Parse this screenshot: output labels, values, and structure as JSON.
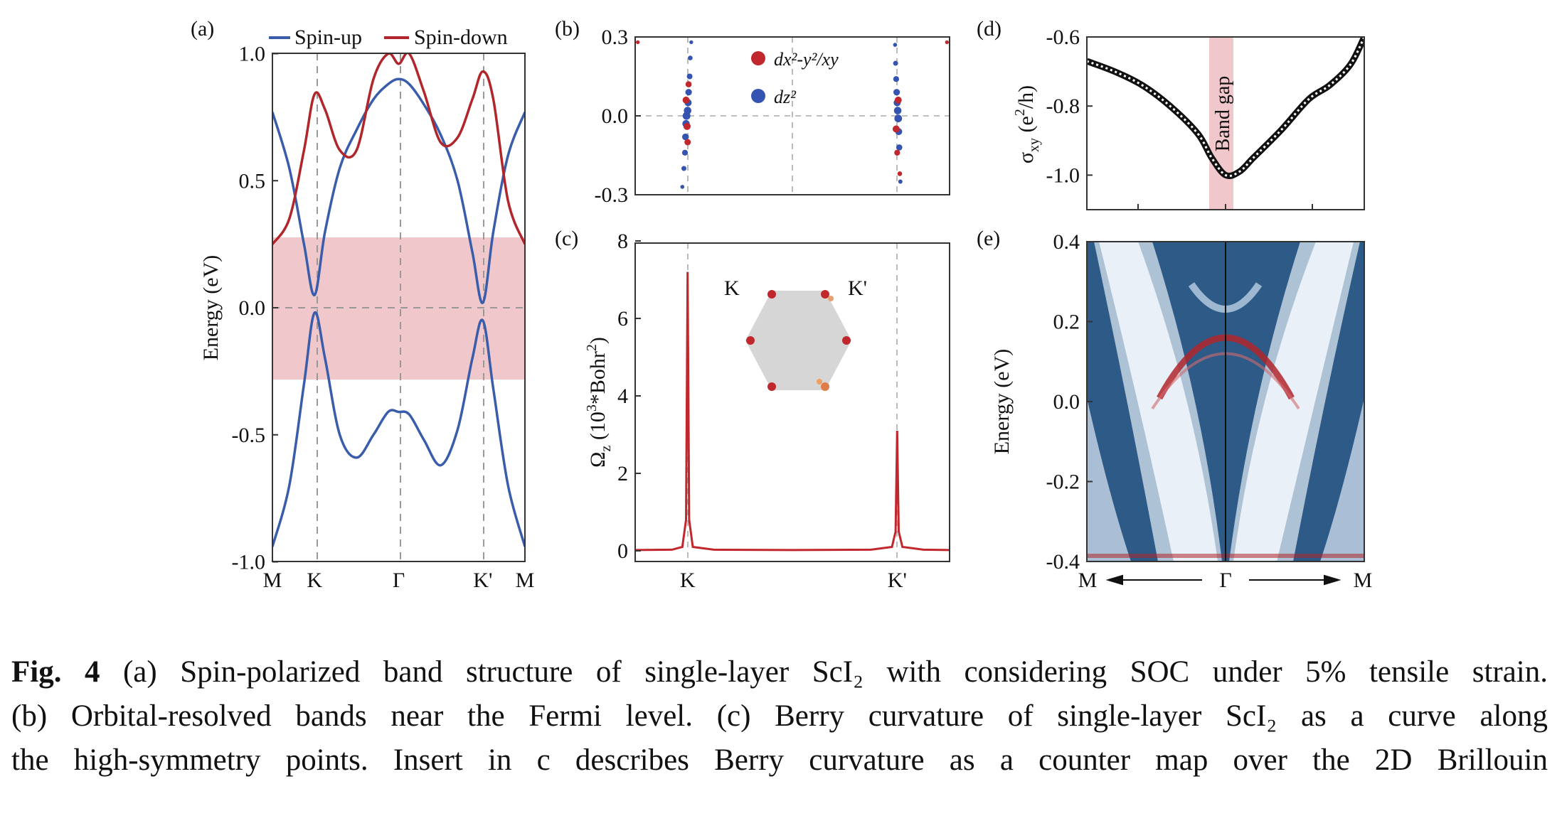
{
  "chart_data": [
    {
      "panel": "(a)",
      "type": "line",
      "legend": [
        "Spin-up",
        "Spin-down"
      ],
      "legend_position": "top",
      "ylabel": "Energy (eV)",
      "ylim": [
        -1.0,
        1.0
      ],
      "yticks": [
        "1.0",
        "0.5",
        "0.0",
        "-0.5",
        "-1.0"
      ],
      "xticks": [
        "M",
        "K",
        "Γ",
        "K'",
        "M"
      ],
      "shaded_band": [
        -0.28,
        0.28
      ],
      "colors": {
        "spin_up": "#3a5dab",
        "spin_down": "#b0262b",
        "band_shade": "#f0c8cc"
      },
      "series": [
        {
          "name": "Spin-up",
          "x": [
            0,
            0.4,
            0.75,
            1.0,
            1.25,
            1.6,
            2.0,
            2.4,
            2.75,
            3.0,
            3.25,
            3.6,
            4.0,
            4.4,
            4.75,
            5.0,
            5.25,
            5.6,
            6.0
          ],
          "y": [
            0.77,
            0.55,
            0.25,
            0.05,
            0.3,
            0.55,
            0.7,
            0.82,
            0.88,
            0.9,
            0.88,
            0.8,
            0.68,
            0.5,
            0.22,
            0.02,
            0.3,
            0.6,
            0.77
          ]
        },
        {
          "name": "Spin-up",
          "x": [
            0,
            0.4,
            0.75,
            1.0,
            1.25,
            1.6,
            2.0,
            2.4,
            2.75,
            3.0,
            3.25,
            3.6,
            4.0,
            4.4,
            4.75,
            5.0,
            5.25,
            5.6,
            6.0
          ],
          "y": [
            -0.94,
            -0.7,
            -0.3,
            -0.02,
            -0.2,
            -0.5,
            -0.59,
            -0.5,
            -0.41,
            -0.41,
            -0.42,
            -0.52,
            -0.62,
            -0.48,
            -0.2,
            -0.05,
            -0.32,
            -0.7,
            -0.94
          ]
        },
        {
          "name": "Spin-down",
          "x": [
            0,
            0.4,
            0.75,
            1.0,
            1.25,
            1.6,
            2.0,
            2.4,
            2.75,
            3.0,
            3.25,
            3.6,
            4.0,
            4.4,
            4.75,
            5.0,
            5.25,
            5.6,
            6.0
          ],
          "y": [
            0.25,
            0.35,
            0.62,
            0.84,
            0.78,
            0.62,
            0.62,
            0.9,
            1.0,
            0.96,
            1.0,
            0.85,
            0.65,
            0.67,
            0.82,
            0.93,
            0.82,
            0.42,
            0.25
          ]
        }
      ]
    },
    {
      "panel": "(b)",
      "type": "scatter",
      "ylim": [
        -0.3,
        0.3
      ],
      "yticks": [
        "0.3",
        "0.0",
        "-0.3"
      ],
      "legend": [
        "dx²-y²/xy",
        "dz²"
      ],
      "legend_position": "top-center",
      "colors": {
        "dxy": "#c0282d",
        "dz2": "#3553b0"
      },
      "series": [
        {
          "name": "dz²",
          "x": [
            0.9,
            0.93,
            0.95,
            0.96,
            0.97,
            0.98,
            1.0,
            1.01,
            1.02,
            1.04,
            1.05,
            1.07,
            4.96,
            4.97,
            4.98,
            4.99,
            5.0,
            5.01,
            5.02,
            5.03,
            5.04,
            5.06
          ],
          "y": [
            -0.27,
            -0.2,
            -0.14,
            -0.08,
            -0.03,
            0.0,
            0.02,
            0.05,
            0.09,
            0.15,
            0.22,
            0.28,
            0.27,
            0.2,
            0.14,
            0.09,
            0.05,
            0.02,
            -0.01,
            -0.06,
            -0.12,
            -0.25
          ]
        },
        {
          "name": "dx²-y²/xy",
          "x": [
            0.97,
            0.99,
            1.0,
            1.02,
            4.98,
            5.0,
            5.02,
            5.05,
            0.05,
            5.95
          ],
          "y": [
            0.06,
            -0.04,
            -0.1,
            0.12,
            -0.05,
            -0.14,
            0.06,
            -0.22,
            0.28,
            0.28
          ]
        }
      ]
    },
    {
      "panel": "(c)",
      "type": "line",
      "ylabel": "Ωz (10³*Bohr²)",
      "ylim": [
        0,
        8
      ],
      "yticks": [
        "8",
        "6",
        "4",
        "2",
        "0"
      ],
      "xticks": [
        "K",
        "K'"
      ],
      "color": "#c0282d",
      "series": [
        {
          "name": "",
          "x": [
            0,
            0.7,
            0.9,
            0.97,
            1.0,
            1.03,
            1.1,
            1.5,
            3.0,
            4.5,
            4.9,
            4.97,
            5.0,
            5.03,
            5.1,
            5.5,
            6.0
          ],
          "y": [
            0.02,
            0.03,
            0.1,
            0.8,
            7.2,
            0.8,
            0.1,
            0.03,
            0.02,
            0.03,
            0.1,
            0.5,
            3.1,
            0.5,
            0.1,
            0.03,
            0.02
          ]
        }
      ],
      "inset": {
        "labels": [
          "K",
          "K'"
        ]
      }
    },
    {
      "panel": "(d)",
      "type": "scatter",
      "ylabel": "σxy (e²/h)",
      "ylim": [
        -1.1,
        -0.6
      ],
      "yticks": [
        "-0.6",
        "-0.8",
        "-1.0"
      ],
      "xlim": [
        -0.4,
        0.4
      ],
      "annotation": "Band gap",
      "band_gap_range": [
        -0.03,
        0.03
      ],
      "series": [
        {
          "name": "",
          "x": [
            -0.4,
            -0.32,
            -0.24,
            -0.16,
            -0.08,
            -0.04,
            0.0,
            0.04,
            0.08,
            0.16,
            0.24,
            0.3,
            0.36,
            0.4
          ],
          "y": [
            -0.67,
            -0.7,
            -0.74,
            -0.8,
            -0.88,
            -0.95,
            -1.0,
            -0.99,
            -0.95,
            -0.87,
            -0.78,
            -0.74,
            -0.68,
            -0.6
          ]
        }
      ]
    },
    {
      "panel": "(e)",
      "type": "heatmap",
      "ylabel": "Energy (eV)",
      "ylim": [
        -0.4,
        0.4
      ],
      "yticks": [
        "0.4",
        "0.2",
        "0.0",
        "-0.2",
        "-0.4"
      ],
      "xticks": [
        "M",
        "Γ",
        "M"
      ],
      "colors": {
        "background": "#2e5a88",
        "bulk": "#ffffff",
        "edge": "#b0262b"
      }
    }
  ],
  "caption": {
    "fig_label": "Fig. 4",
    "lines": [
      "(a) Spin-polarized band structure of single-layer ScI₂ with considering SOC under 5% tensile strain.",
      "(b) Orbital-resolved bands near the Fermi level. (c) Berry curvature of single-layer ScI₂ as a curve along",
      "the high-symmetry points. Insert in c describes Berry curvature as a counter map over the 2D Brillouin"
    ]
  }
}
